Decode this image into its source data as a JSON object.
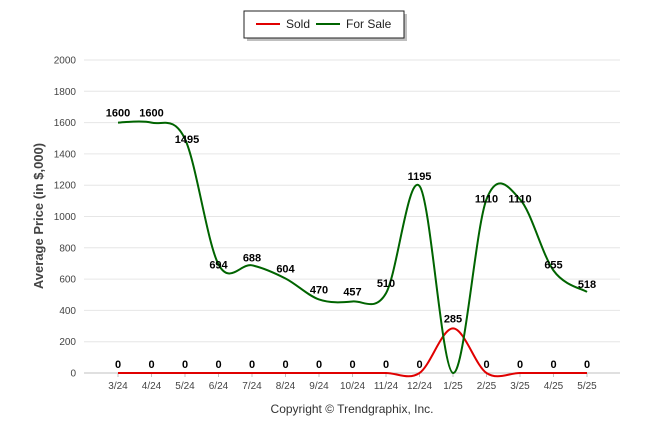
{
  "chart_data": {
    "type": "line",
    "categories": [
      "3/24",
      "4/24",
      "5/24",
      "6/24",
      "7/24",
      "8/24",
      "9/24",
      "10/24",
      "11/24",
      "12/24",
      "1/25",
      "2/25",
      "3/25",
      "4/25",
      "5/25"
    ],
    "series": [
      {
        "name": "Sold",
        "color": "#e00000",
        "values": [
          0,
          0,
          0,
          0,
          0,
          0,
          0,
          0,
          0,
          0,
          285,
          0,
          0,
          0,
          0
        ]
      },
      {
        "name": "For Sale",
        "color": "#006400",
        "values": [
          1600,
          1600,
          1495,
          694,
          688,
          604,
          470,
          457,
          510,
          1195,
          0,
          1110,
          1110,
          655,
          518
        ]
      }
    ],
    "ylabel": "Average Price (in $,000)",
    "ylim": [
      0,
      2000
    ],
    "yticks": [
      0,
      200,
      400,
      600,
      800,
      1000,
      1200,
      1400,
      1600,
      1800,
      2000
    ],
    "grid": true,
    "legend": "top-center",
    "credit": "Copyright © Trendgraphix, Inc."
  }
}
